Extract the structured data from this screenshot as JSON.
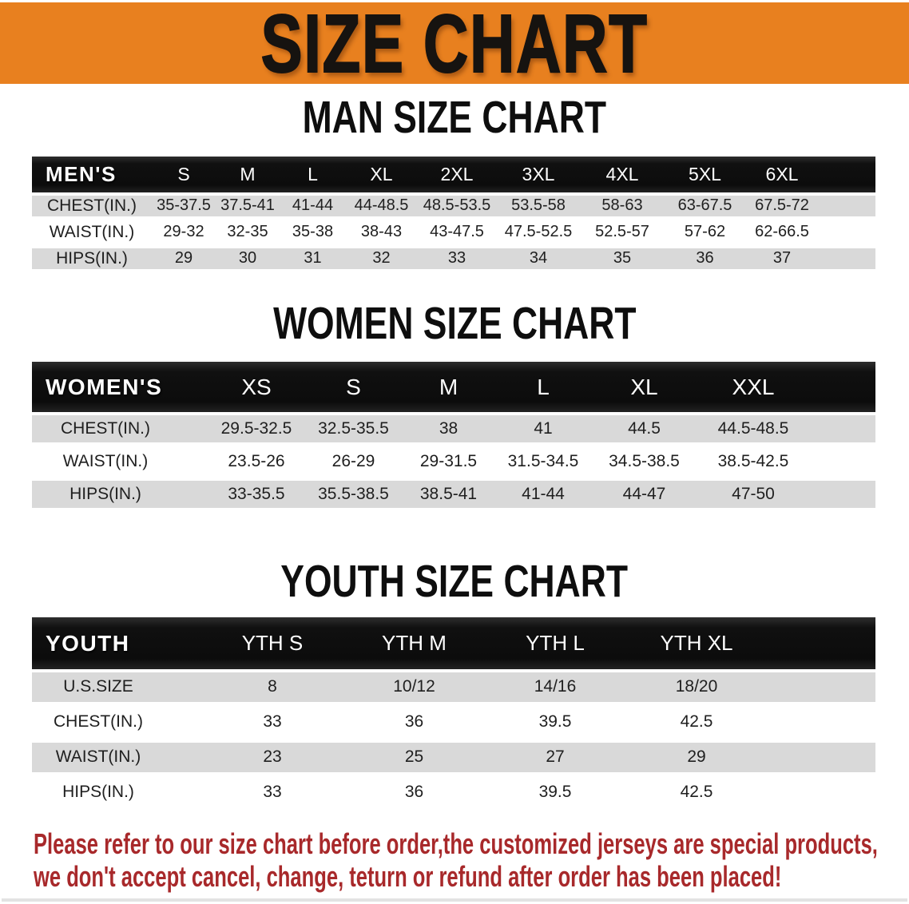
{
  "banner": {
    "title": "SIZE CHART",
    "bg_color": "#E8801F",
    "text_color": "#161310"
  },
  "sections": [
    {
      "id": "men",
      "heading": "MAN SIZE CHART",
      "table": {
        "corner_label": "MEN'S",
        "columns": [
          "S",
          "M",
          "L",
          "XL",
          "2XL",
          "3XL",
          "4XL",
          "5XL",
          "6XL"
        ],
        "rows": [
          {
            "label": "CHEST(IN.)",
            "values": [
              "35-37.5",
              "37.5-41",
              "41-44",
              "44-48.5",
              "48.5-53.5",
              "53.5-58",
              "58-63",
              "63-67.5",
              "67.5-72"
            ]
          },
          {
            "label": "WAIST(IN.)",
            "values": [
              "29-32",
              "32-35",
              "35-38",
              "38-43",
              "43-47.5",
              "47.5-52.5",
              "52.5-57",
              "57-62",
              "62-66.5"
            ]
          },
          {
            "label": "HIPS(IN.)",
            "values": [
              "29",
              "30",
              "31",
              "32",
              "33",
              "34",
              "35",
              "36",
              "37"
            ]
          }
        ]
      }
    },
    {
      "id": "women",
      "heading": "WOMEN SIZE CHART",
      "table": {
        "corner_label": "WOMEN'S",
        "columns": [
          "XS",
          "S",
          "M",
          "L",
          "XL",
          "XXL"
        ],
        "rows": [
          {
            "label": "CHEST(IN.)",
            "values": [
              "29.5-32.5",
              "32.5-35.5",
              "38",
              "41",
              "44.5",
              "44.5-48.5"
            ]
          },
          {
            "label": "WAIST(IN.)",
            "values": [
              "23.5-26",
              "26-29",
              "29-31.5",
              "31.5-34.5",
              "34.5-38.5",
              "38.5-42.5"
            ]
          },
          {
            "label": "HIPS(IN.)",
            "values": [
              "33-35.5",
              "35.5-38.5",
              "38.5-41",
              "41-44",
              "44-47",
              "47-50"
            ]
          }
        ]
      }
    },
    {
      "id": "youth",
      "heading": "YOUTH SIZE CHART",
      "table": {
        "corner_label": "YOUTH",
        "columns": [
          "YTH S",
          "YTH M",
          "YTH L",
          "YTH XL"
        ],
        "rows": [
          {
            "label": "U.S.SIZE",
            "values": [
              "8",
              "10/12",
              "14/16",
              "18/20"
            ]
          },
          {
            "label": "CHEST(IN.)",
            "values": [
              "33",
              "36",
              "39.5",
              "42.5"
            ]
          },
          {
            "label": "WAIST(IN.)",
            "values": [
              "23",
              "25",
              "27",
              "29"
            ]
          },
          {
            "label": "HIPS(IN.)",
            "values": [
              "33",
              "36",
              "39.5",
              "42.5"
            ]
          }
        ]
      }
    }
  ],
  "disclaimer": {
    "line1": "Please refer to our size chart before order,the customized jerseys are special products,",
    "line2": "we don't accept cancel, change, teturn or refund after order has been placed!",
    "color": "#A8292B"
  }
}
